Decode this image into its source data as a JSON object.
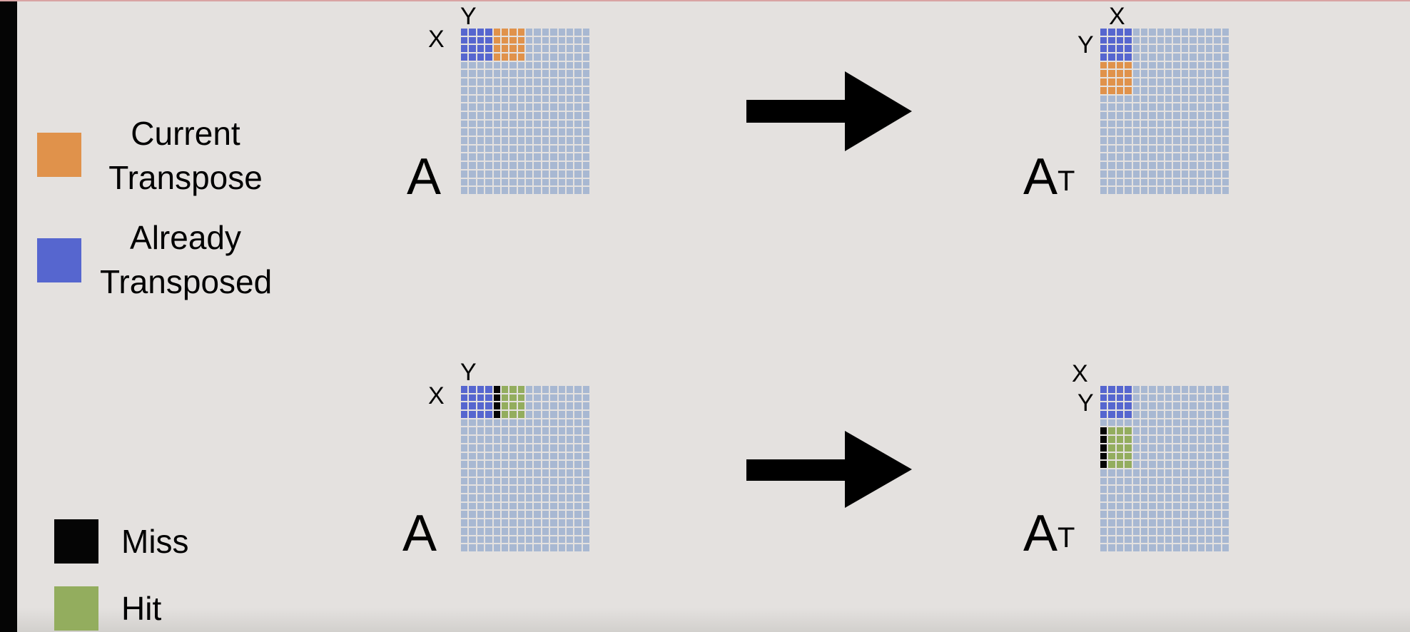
{
  "legend": {
    "current_transpose": {
      "label_line1": "Current",
      "label_line2": "Transpose",
      "color": "#e0924b"
    },
    "already_transposed": {
      "label_line1": "Already",
      "label_line2": "Transposed",
      "color": "#5666cf"
    },
    "miss": {
      "label": "Miss",
      "color": "#050505"
    },
    "hit": {
      "label": "Hit",
      "color": "#93ad5e"
    }
  },
  "top_row": {
    "source": {
      "matrix_label": "A",
      "x_label": "X",
      "y_label": "Y"
    },
    "target": {
      "matrix_label": "A",
      "superscript": "T",
      "x_label": "X",
      "y_label": "Y"
    }
  },
  "bottom_row": {
    "source": {
      "matrix_label": "A",
      "x_label": "X",
      "y_label": "Y"
    },
    "target": {
      "matrix_label": "A",
      "superscript": "T",
      "x_label": "X",
      "y_label": "Y"
    }
  },
  "colors": {
    "grid_cell": "#a8b8d2",
    "background": "#e4e1df"
  }
}
